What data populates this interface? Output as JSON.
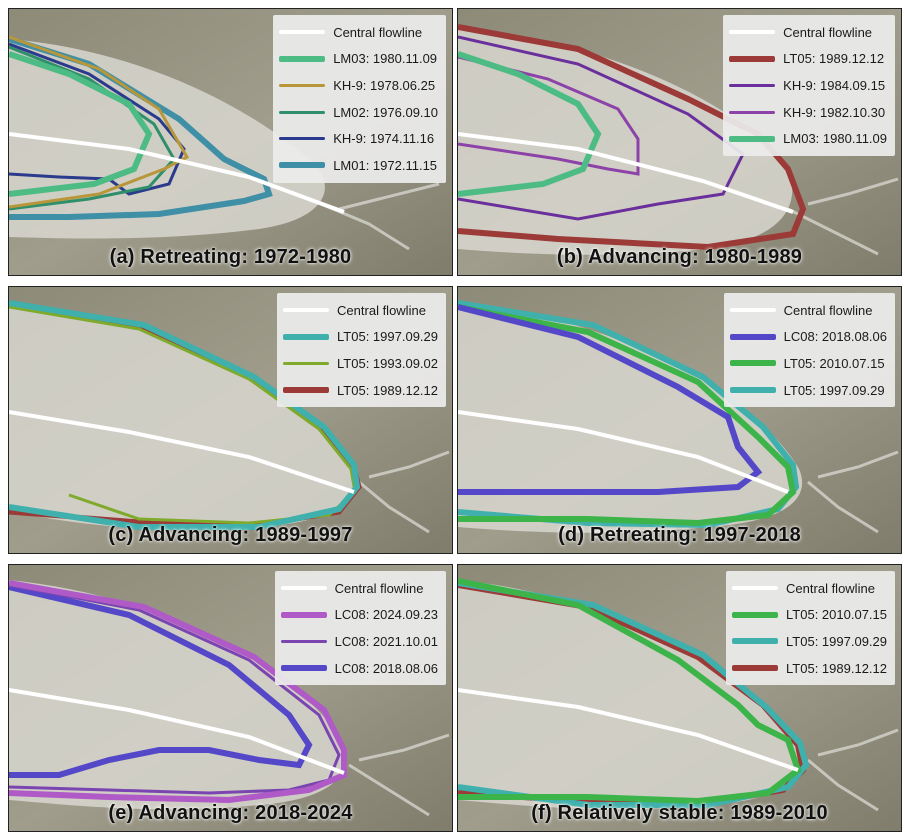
{
  "central_flowline_color": "#ffffff",
  "panels": [
    {
      "caption": "(a) Retreating: 1972-1980",
      "legend": [
        {
          "label": "Central flowline",
          "color": "#ffffff",
          "width": 4
        },
        {
          "label": "LM03: 1980.11.09",
          "color": "#4dbb84",
          "width": 6
        },
        {
          "label": "KH-9: 1978.06.25",
          "color": "#b8973a",
          "width": 3
        },
        {
          "label": "LM02: 1976.09.10",
          "color": "#2f8f6a",
          "width": 3
        },
        {
          "label": "KH-9: 1974.11.16",
          "color": "#2a3a8c",
          "width": 3
        },
        {
          "label": "LM01: 1972.11.15",
          "color": "#3f8fa6",
          "width": 6
        }
      ]
    },
    {
      "caption": "(b) Advancing: 1980-1989",
      "legend": [
        {
          "label": "Central flowline",
          "color": "#ffffff",
          "width": 4
        },
        {
          "label": "LT05: 1989.12.12",
          "color": "#9b3a37",
          "width": 6
        },
        {
          "label": "KH-9: 1984.09.15",
          "color": "#6a2f9c",
          "width": 3
        },
        {
          "label": "KH-9: 1982.10.30",
          "color": "#8c42a8",
          "width": 3
        },
        {
          "label": "LM03: 1980.11.09",
          "color": "#4dbb84",
          "width": 6
        }
      ]
    },
    {
      "caption": "(c) Advancing: 1989-1997",
      "legend": [
        {
          "label": "Central flowline",
          "color": "#ffffff",
          "width": 4
        },
        {
          "label": "LT05: 1997.09.29",
          "color": "#3fb0ac",
          "width": 6
        },
        {
          "label": "LT05: 1993.09.02",
          "color": "#7faa2c",
          "width": 3
        },
        {
          "label": "LT05: 1989.12.12",
          "color": "#9b3a37",
          "width": 6
        }
      ]
    },
    {
      "caption": "(d) Retreating: 1997-2018",
      "legend": [
        {
          "label": "Central flowline",
          "color": "#ffffff",
          "width": 4
        },
        {
          "label": "LC08: 2018.08.06",
          "color": "#5448c8",
          "width": 6
        },
        {
          "label": "LT05: 2010.07.15",
          "color": "#3cb44a",
          "width": 6
        },
        {
          "label": "LT05: 1997.09.29",
          "color": "#3fb0ac",
          "width": 6
        }
      ]
    },
    {
      "caption": "(e) Advancing: 2018-2024",
      "legend": [
        {
          "label": "Central flowline",
          "color": "#ffffff",
          "width": 4
        },
        {
          "label": "LC08: 2024.09.23",
          "color": "#b05ac8",
          "width": 6
        },
        {
          "label": "LC08: 2021.10.01",
          "color": "#7a45b0",
          "width": 3
        },
        {
          "label": "LC08: 2018.08.06",
          "color": "#5448c8",
          "width": 6
        }
      ]
    },
    {
      "caption": "(f) Relatively stable: 1989-2010",
      "legend": [
        {
          "label": "Central flowline",
          "color": "#ffffff",
          "width": 4
        },
        {
          "label": "LT05: 2010.07.15",
          "color": "#3cb44a",
          "width": 6
        },
        {
          "label": "LT05: 1997.09.29",
          "color": "#3fb0ac",
          "width": 6
        },
        {
          "label": "LT05: 1989.12.12",
          "color": "#9b3a37",
          "width": 6
        }
      ]
    }
  ]
}
